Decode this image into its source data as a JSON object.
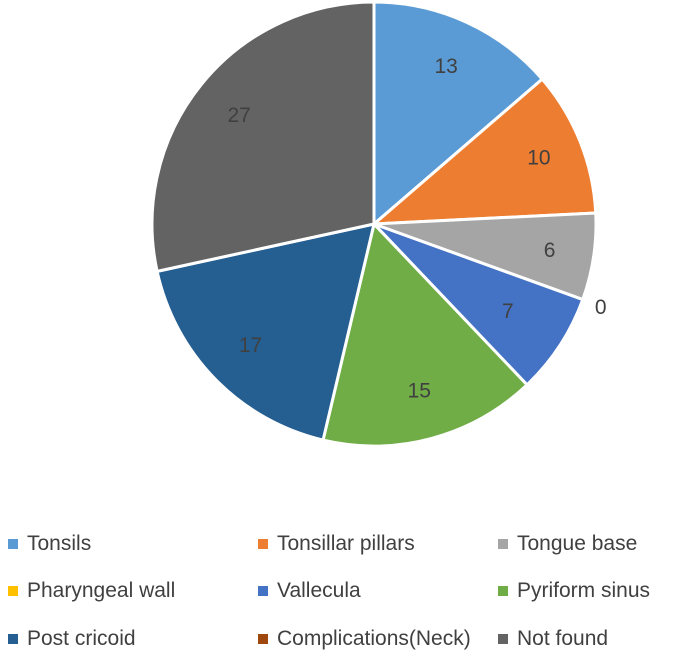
{
  "chart_data": {
    "type": "pie",
    "categories": [
      "Tonsils",
      "Tonsillar pillars",
      "Tongue base",
      "Pharyngeal wall",
      "Vallecula",
      "Pyriform sinus",
      "Post cricoid",
      "Complications(Neck)",
      "Not found"
    ],
    "values": [
      13,
      10,
      6,
      0,
      7,
      15,
      17,
      0,
      27
    ],
    "data_labels": [
      "13",
      "10",
      "6",
      "0",
      "7",
      "15",
      "17",
      "",
      "27"
    ],
    "colors": [
      "#5b9bd5",
      "#ed7d31",
      "#a5a5a5",
      "#ffc000",
      "#4472c4",
      "#70ad47",
      "#255e91",
      "#9e480e",
      "#636363"
    ],
    "legend_placement": "bottom",
    "start_angle_deg": 0,
    "direction": "clockwise"
  }
}
